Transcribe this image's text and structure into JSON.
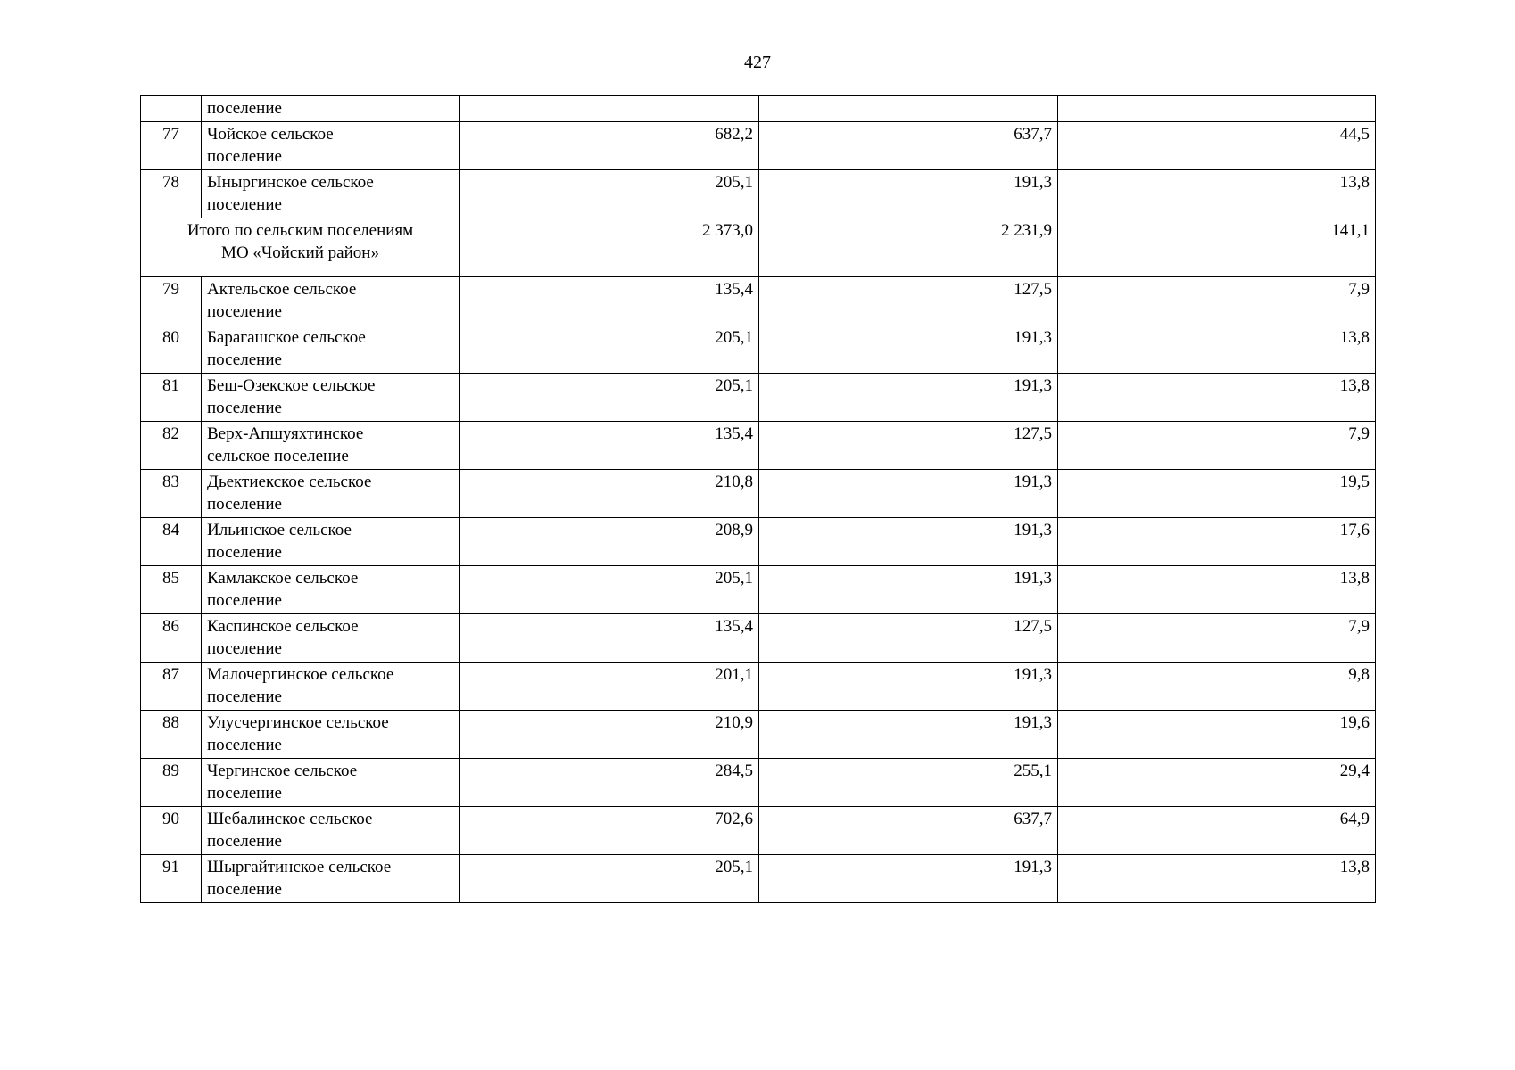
{
  "page_number": "427",
  "table": {
    "rows": [
      {
        "kind": "partial",
        "num": "",
        "name": "поселение",
        "v1": "",
        "v2": "",
        "v3": ""
      },
      {
        "kind": "data",
        "num": "77",
        "name": "Чойское сельское\nпоселение",
        "v1": "682,2",
        "v2": "637,7",
        "v3": "44,5"
      },
      {
        "kind": "data",
        "num": "78",
        "name": "Ыныргинское сельское\nпоселение",
        "v1": "205,1",
        "v2": "191,3",
        "v3": "13,8"
      },
      {
        "kind": "total",
        "num": "",
        "name": "Итого по сельским поселениям\nМО «Чойский район»",
        "v1": "2 373,0",
        "v2": "2 231,9",
        "v3": "141,1"
      },
      {
        "kind": "data",
        "num": "79",
        "name": "Актельское сельское\nпоселение",
        "v1": "135,4",
        "v2": "127,5",
        "v3": "7,9"
      },
      {
        "kind": "data",
        "num": "80",
        "name": "Барагашское сельское\nпоселение",
        "v1": "205,1",
        "v2": "191,3",
        "v3": "13,8"
      },
      {
        "kind": "data",
        "num": "81",
        "name": "Беш-Озекское сельское\nпоселение",
        "v1": "205,1",
        "v2": "191,3",
        "v3": "13,8"
      },
      {
        "kind": "data",
        "num": "82",
        "name": "Верх-Апшуяхтинское\nсельское поселение",
        "v1": "135,4",
        "v2": "127,5",
        "v3": "7,9"
      },
      {
        "kind": "data",
        "num": "83",
        "name": "Дьектиекское сельское\nпоселение",
        "v1": "210,8",
        "v2": "191,3",
        "v3": "19,5"
      },
      {
        "kind": "data",
        "num": "84",
        "name": "Ильинское сельское\nпоселение",
        "v1": "208,9",
        "v2": "191,3",
        "v3": "17,6"
      },
      {
        "kind": "data",
        "num": "85",
        "name": "Камлакское сельское\nпоселение",
        "v1": "205,1",
        "v2": "191,3",
        "v3": "13,8"
      },
      {
        "kind": "data",
        "num": "86",
        "name": "Каспинское сельское\nпоселение",
        "v1": "135,4",
        "v2": "127,5",
        "v3": "7,9"
      },
      {
        "kind": "data",
        "num": "87",
        "name": "Малочергинское сельское\nпоселение",
        "v1": "201,1",
        "v2": "191,3",
        "v3": "9,8"
      },
      {
        "kind": "data",
        "num": "88",
        "name": "Улусчергинское сельское\nпоселение",
        "v1": "210,9",
        "v2": "191,3",
        "v3": "19,6"
      },
      {
        "kind": "data",
        "num": "89",
        "name": "Чергинское сельское\nпоселение",
        "v1": "284,5",
        "v2": "255,1",
        "v3": "29,4"
      },
      {
        "kind": "data",
        "num": "90",
        "name": "Шебалинское сельское\nпоселение",
        "v1": "702,6",
        "v2": "637,7",
        "v3": "64,9"
      },
      {
        "kind": "data",
        "num": "91",
        "name": "Шыргайтинское сельское\nпоселение",
        "v1": "205,1",
        "v2": "191,3",
        "v3": "13,8"
      }
    ]
  }
}
